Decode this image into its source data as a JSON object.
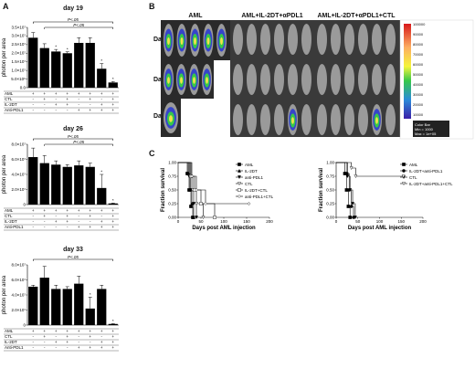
{
  "panels": {
    "a_letter": "A",
    "b_letter": "B",
    "c_letter": "C"
  },
  "panel_a": {
    "ylabel": "photon per area",
    "charts": [
      {
        "title": "day 19",
        "yticks": [
          "0.0",
          "5.0×10⁶",
          "1.0×10⁷",
          "1.5×10⁷",
          "2.0×10⁷",
          "2.5×10⁷",
          "3.0×10⁷",
          "3.5×10⁷"
        ],
        "ymax": 35000000,
        "values": [
          29000000,
          23000000,
          21000000,
          20000000,
          26000000,
          26000000,
          11000000,
          3000000
        ],
        "errors": [
          3000000,
          2500000,
          1200000,
          800000,
          3000000,
          3000000,
          3000000,
          500000
        ],
        "stars": [
          "",
          "",
          "*",
          "*",
          "",
          "",
          "*",
          "*"
        ],
        "sig": [
          "P<.05",
          "P<.05"
        ],
        "rows": [
          {
            "label": "AML",
            "cells": [
              "+",
              "+",
              "+",
              "+",
              "+",
              "+",
              "+",
              "+"
            ]
          },
          {
            "label": "CTL",
            "cells": [
              "-",
              "+",
              "-",
              "+",
              "-",
              "+",
              "-",
              "+"
            ]
          },
          {
            "label": "IL-2DT",
            "cells": [
              "-",
              "-",
              "+",
              "+",
              "-",
              "-",
              "+",
              "+"
            ]
          },
          {
            "label": "Anti-PDL1",
            "cells": [
              "-",
              "-",
              "-",
              "-",
              "+",
              "+",
              "+",
              "+"
            ]
          }
        ]
      },
      {
        "title": "day 26",
        "yticks": [
          "0",
          "2.0×10⁷",
          "4.0×10⁷",
          "6.0×10⁷",
          "8.0×10⁷"
        ],
        "ymax": 80000000,
        "values": [
          63000000,
          55000000,
          53000000,
          50000000,
          52000000,
          50000000,
          22000000,
          1500000
        ],
        "errors": [
          12000000,
          10000000,
          5000000,
          3000000,
          6000000,
          5000000,
          18000000,
          500000
        ],
        "stars": [
          "",
          "",
          "",
          "",
          "",
          "",
          "*",
          "*"
        ],
        "sig": [
          "P<.05",
          "P<.05"
        ],
        "rows": [
          {
            "label": "AML",
            "cells": [
              "+",
              "+",
              "+",
              "+",
              "+",
              "+",
              "+",
              "+"
            ]
          },
          {
            "label": "CTL",
            "cells": [
              "-",
              "+",
              "-",
              "+",
              "-",
              "+",
              "-",
              "+"
            ]
          },
          {
            "label": "IL-2DT",
            "cells": [
              "-",
              "-",
              "+",
              "+",
              "-",
              "-",
              "+",
              "+"
            ]
          },
          {
            "label": "Anti-PDL1",
            "cells": [
              "-",
              "-",
              "-",
              "-",
              "+",
              "+",
              "+",
              "+"
            ]
          }
        ]
      },
      {
        "title": "day 33",
        "yticks": [
          "0",
          "2.0×10⁷",
          "4.0×10⁷",
          "6.0×10⁷",
          "8.0×10⁷"
        ],
        "ymax": 80000000,
        "values": [
          51000000,
          63000000,
          48000000,
          48000000,
          55000000,
          22000000,
          48000000,
          1500000
        ],
        "errors": [
          2000000,
          15000000,
          5000000,
          3000000,
          10000000,
          15000000,
          5000000,
          500000
        ],
        "stars": [
          "",
          "",
          "",
          "",
          "",
          "*",
          "",
          "*"
        ],
        "sig": [
          "P<.05"
        ],
        "rows": [
          {
            "label": "AML",
            "cells": [
              "+",
              "+",
              "+",
              "+",
              "+",
              "+",
              "+",
              "+"
            ]
          },
          {
            "label": "CTL",
            "cells": [
              "-",
              "+",
              "-",
              "+",
              "-",
              "+",
              "-",
              "+"
            ]
          },
          {
            "label": "IL-2DT",
            "cells": [
              "-",
              "-",
              "+",
              "+",
              "-",
              "-",
              "+",
              "+"
            ]
          },
          {
            "label": "Anti-PDL1",
            "cells": [
              "-",
              "-",
              "-",
              "-",
              "+",
              "+",
              "+",
              "+"
            ]
          }
        ]
      }
    ]
  },
  "panel_b": {
    "columns": [
      "AML",
      "AML+IL-2DT+αPDL1",
      "AML+IL-2DT+αPDL1+CTL"
    ],
    "rows": [
      "Day 19",
      "Day 26",
      "Day 33"
    ],
    "colorbar": {
      "ticks": [
        "100000",
        "90000",
        "80000",
        "70000",
        "60000",
        "50000",
        "40000",
        "30000",
        "20000",
        "10000"
      ],
      "caption": "Color Bar",
      "min": "Min = 1000",
      "max": "Max = 1e+05"
    }
  },
  "panel_c": {
    "chart_data": [
      {
        "type": "line",
        "ylabel": "Fraction survival",
        "xlabel": "Days post AML injection",
        "xlim": [
          0,
          200
        ],
        "ylim": [
          0,
          1.0
        ],
        "xticks": [
          "0",
          "50",
          "100",
          "150",
          "200"
        ],
        "yticks": [
          "0.00",
          "0.25",
          "0.50",
          "0.75",
          "1.00"
        ],
        "series": [
          {
            "name": "AML",
            "marker": "square-filled",
            "x": [
              0,
              20,
              24,
              28,
              32
            ],
            "y": [
              1.0,
              0.8,
              0.5,
              0.2,
              0.0
            ]
          },
          {
            "name": "IL-2DT",
            "marker": "triangle-filled",
            "x": [
              0,
              22,
              26,
              30,
              34
            ],
            "y": [
              1.0,
              0.8,
              0.5,
              0.25,
              0.0
            ]
          },
          {
            "name": "anti-PDL1",
            "marker": "triangle-down-filled",
            "x": [
              0,
              24,
              28,
              34,
              40
            ],
            "y": [
              1.0,
              0.75,
              0.5,
              0.25,
              0.0
            ]
          },
          {
            "name": "CTL",
            "marker": "triangle-down-open",
            "x": [
              0,
              26,
              32,
              40,
              55
            ],
            "y": [
              1.0,
              0.75,
              0.5,
              0.25,
              0.0
            ]
          },
          {
            "name": "IL-2DT+CTL",
            "marker": "square-open",
            "x": [
              0,
              28,
              36,
              50,
              80
            ],
            "y": [
              1.0,
              0.75,
              0.5,
              0.25,
              0.0
            ]
          },
          {
            "name": "anti-PDL1+CTL",
            "marker": "diamond-open",
            "x": [
              0,
              30,
              40,
              60,
              155
            ],
            "y": [
              1.0,
              0.75,
              0.5,
              0.25,
              0.25
            ]
          }
        ]
      },
      {
        "type": "line",
        "ylabel": "Fraction survival",
        "xlabel": "Days post AML injection",
        "xlim": [
          0,
          200
        ],
        "ylim": [
          0,
          1.0
        ],
        "xticks": [
          "0",
          "50",
          "100",
          "150",
          "200"
        ],
        "yticks": [
          "0.00",
          "0.25",
          "0.50",
          "0.75",
          "1.00"
        ],
        "series": [
          {
            "name": "AML",
            "marker": "square-filled",
            "x": [
              0,
              20,
              24,
              28,
              32
            ],
            "y": [
              1.0,
              0.8,
              0.5,
              0.2,
              0.0
            ]
          },
          {
            "name": "IL-2DT+anti-PDL1",
            "marker": "circle-filled",
            "x": [
              0,
              25,
              30,
              35,
              40
            ],
            "y": [
              1.0,
              0.8,
              0.5,
              0.2,
              0.0
            ]
          },
          {
            "name": "CTL",
            "marker": "triangle-down-filled",
            "x": [
              0,
              26,
              32,
              38,
              44
            ],
            "y": [
              1.0,
              0.75,
              0.5,
              0.25,
              0.0
            ]
          },
          {
            "name": "IL-2DT+anti-PDL1+CTL",
            "marker": "triangle-down-open",
            "x": [
              0,
              35,
              45,
              155
            ],
            "y": [
              1.0,
              0.9,
              0.75,
              0.75
            ]
          }
        ]
      }
    ]
  }
}
